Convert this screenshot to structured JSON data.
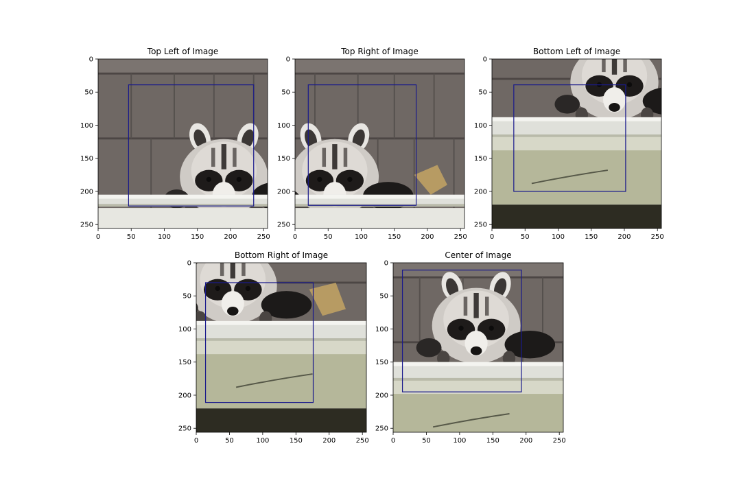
{
  "colors": {
    "bbox": "#1a1a8c",
    "axis": "#000000"
  },
  "chart_data": [
    {
      "type": "image_crop_with_bbox",
      "title": "Top Left of Image",
      "xlim": [
        0,
        256
      ],
      "ylim": [
        256,
        0
      ],
      "xticks": [
        0,
        50,
        100,
        150,
        200,
        250
      ],
      "yticks": [
        0,
        50,
        100,
        150,
        200,
        250
      ],
      "bbox": {
        "x0": 46,
        "y0": 39,
        "x1": 235,
        "y1": 222
      },
      "scene": "raccoon-top-left"
    },
    {
      "type": "image_crop_with_bbox",
      "title": "Top Right of Image",
      "xlim": [
        0,
        256
      ],
      "ylim": [
        256,
        0
      ],
      "xticks": [
        0,
        50,
        100,
        150,
        200,
        250
      ],
      "yticks": [
        0,
        50,
        100,
        150,
        200,
        250
      ],
      "bbox": {
        "x0": 20,
        "y0": 39,
        "x1": 183,
        "y1": 221
      },
      "scene": "raccoon-top-right"
    },
    {
      "type": "image_crop_with_bbox",
      "title": "Bottom Left of Image",
      "xlim": [
        0,
        256
      ],
      "ylim": [
        256,
        0
      ],
      "xticks": [
        0,
        50,
        100,
        150,
        200,
        250
      ],
      "yticks": [
        0,
        50,
        100,
        150,
        200,
        250
      ],
      "bbox": {
        "x0": 33,
        "y0": 39,
        "x1": 202,
        "y1": 200
      },
      "scene": "raccoon-bottom-left"
    },
    {
      "type": "image_crop_with_bbox",
      "title": "Bottom Right of Image",
      "xlim": [
        0,
        256
      ],
      "ylim": [
        256,
        0
      ],
      "xticks": [
        0,
        50,
        100,
        150,
        200,
        250
      ],
      "yticks": [
        0,
        50,
        100,
        150,
        200,
        250
      ],
      "bbox": {
        "x0": 14,
        "y0": 30,
        "x1": 176,
        "y1": 211
      },
      "scene": "raccoon-bottom-right"
    },
    {
      "type": "image_crop_with_bbox",
      "title": "Center of Image",
      "xlim": [
        0,
        256
      ],
      "ylim": [
        256,
        0
      ],
      "xticks": [
        0,
        50,
        100,
        150,
        200,
        250
      ],
      "yticks": [
        0,
        50,
        100,
        150,
        200,
        250
      ],
      "bbox": {
        "x0": 14,
        "y0": 11,
        "x1": 193,
        "y1": 195
      },
      "scene": "raccoon-center"
    }
  ]
}
